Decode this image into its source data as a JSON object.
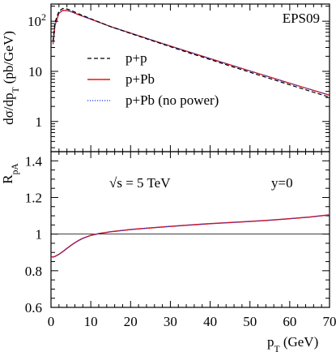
{
  "chart_data": [
    {
      "type": "line",
      "panel": "top",
      "ylabel": "dσ/dp_T (pb/GeV)",
      "yscale": "log",
      "xlim": [
        0,
        70
      ],
      "ylim": [
        0.25,
        220
      ],
      "yticks": [
        {
          "value": 100,
          "label": "10²"
        },
        {
          "value": 10,
          "label": "10"
        },
        {
          "value": 1,
          "label": "1"
        }
      ],
      "annotation": "EPS09",
      "legend": "center-left",
      "series": [
        {
          "name": "p+p",
          "color": "#000000",
          "style": "dashed",
          "x": [
            0.5,
            1,
            2,
            3,
            4,
            5,
            7,
            10,
            15,
            20,
            25,
            30,
            35,
            40,
            45,
            50,
            55,
            60,
            65,
            70
          ],
          "y": [
            40,
            95,
            160,
            180,
            175,
            165,
            140,
            112,
            78,
            57,
            42,
            31,
            23,
            17.2,
            12.8,
            9.6,
            7.2,
            5.4,
            4.05,
            3.05
          ]
        },
        {
          "name": "p+Pb",
          "color": "#ee1111",
          "style": "solid",
          "x": [
            0.5,
            1,
            2,
            3,
            4,
            5,
            7,
            10,
            15,
            20,
            25,
            30,
            35,
            40,
            45,
            50,
            55,
            60,
            65,
            70
          ],
          "y": [
            35,
            83,
            145,
            165,
            163,
            156,
            134,
            110,
            78,
            58,
            43,
            32,
            24,
            18,
            13.5,
            10.2,
            7.7,
            5.8,
            4.4,
            3.35
          ]
        },
        {
          "name": "p+Pb (no power)",
          "color": "#1a3bd6",
          "style": "dotted",
          "x": [
            0.5,
            1,
            2,
            3,
            4,
            5,
            7,
            10,
            15,
            20,
            25,
            30,
            35,
            40,
            45,
            50,
            55,
            60,
            65,
            70
          ],
          "y": [
            35,
            83,
            145,
            165,
            163,
            156,
            134,
            110,
            78,
            58,
            43,
            32,
            24,
            18,
            13.5,
            10.2,
            7.7,
            5.8,
            4.4,
            3.35
          ]
        }
      ]
    },
    {
      "type": "line",
      "panel": "bottom",
      "ylabel": "R_pA",
      "xlabel": "p_T (GeV)",
      "xlim": [
        0,
        70
      ],
      "ylim": [
        0.6,
        1.45
      ],
      "xticks": [
        0,
        10,
        20,
        30,
        40,
        50,
        60,
        70
      ],
      "yticks": [
        {
          "value": 0.6,
          "label": "0.6"
        },
        {
          "value": 0.8,
          "label": "0.8"
        },
        {
          "value": 1,
          "label": "1"
        },
        {
          "value": 1.2,
          "label": "1.2"
        },
        {
          "value": 1.4,
          "label": "1.4"
        }
      ],
      "reference_line": 1,
      "annotations": [
        "√s = 5 TeV",
        "y=0"
      ],
      "series": [
        {
          "name": "p+Pb",
          "color": "#ee1111",
          "style": "solid",
          "x": [
            0,
            0.5,
            1,
            2,
            3,
            4,
            5,
            6,
            7,
            8,
            10,
            12,
            15,
            20,
            25,
            30,
            35,
            40,
            45,
            50,
            55,
            60,
            65,
            70
          ],
          "y": [
            0.876,
            0.875,
            0.878,
            0.89,
            0.905,
            0.922,
            0.938,
            0.953,
            0.966,
            0.977,
            0.993,
            1.003,
            1.013,
            1.025,
            1.034,
            1.042,
            1.05,
            1.057,
            1.063,
            1.069,
            1.076,
            1.084,
            1.093,
            1.105
          ]
        },
        {
          "name": "p+Pb (no power)",
          "color": "#1a3bd6",
          "style": "dotted",
          "x": [
            0,
            0.5,
            1,
            2,
            3,
            4,
            5,
            6,
            7,
            8,
            10,
            12,
            15,
            20,
            25,
            30,
            35,
            40,
            45,
            50,
            55,
            60,
            65,
            70
          ],
          "y": [
            0.876,
            0.875,
            0.878,
            0.89,
            0.905,
            0.922,
            0.938,
            0.953,
            0.966,
            0.977,
            0.993,
            1.003,
            1.013,
            1.025,
            1.034,
            1.042,
            1.05,
            1.057,
            1.063,
            1.069,
            1.076,
            1.084,
            1.093,
            1.105
          ]
        }
      ]
    }
  ]
}
